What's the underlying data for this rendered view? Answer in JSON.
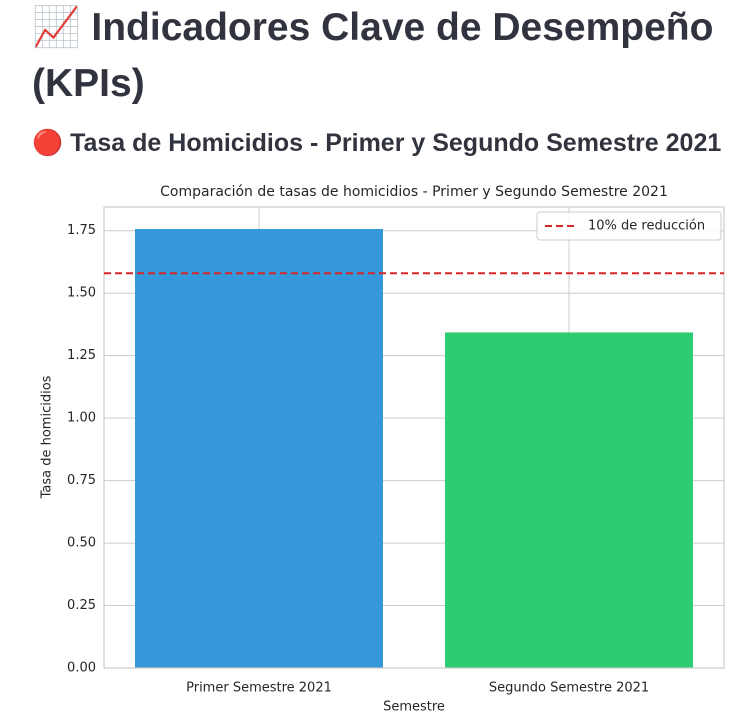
{
  "header": {
    "title": "📈 Indicadores Clave de Desempeño (KPIs)",
    "subheader": "🔴 Tasa de Homicidios - Primer y Segundo Semestre 2021"
  },
  "chart_data": {
    "type": "bar",
    "title": "Comparación de tasas de homicidios - Primer y Segundo Semestre 2021",
    "xlabel": "Semestre",
    "ylabel": "Tasa de homicidios",
    "categories": [
      "Primer Semestre 2021",
      "Segundo Semestre 2021"
    ],
    "values": [
      1.757,
      1.343
    ],
    "colors": [
      "#3498db",
      "#2ecc71"
    ],
    "ylim": [
      0,
      1.845
    ],
    "yticks": [
      {
        "value": 0,
        "label": "0.00"
      },
      {
        "value": 0.25,
        "label": "0.25"
      },
      {
        "value": 0.5,
        "label": "0.50"
      },
      {
        "value": 0.75,
        "label": "0.75"
      },
      {
        "value": 1,
        "label": "1.00"
      },
      {
        "value": 1.25,
        "label": "1.25"
      },
      {
        "value": 1.5,
        "label": "1.50"
      },
      {
        "value": 1.75,
        "label": "1.75"
      }
    ],
    "grid": true,
    "reference_line": {
      "value": 1.58,
      "label": "10% de reducción",
      "color": "#d62728"
    },
    "legend": "upper right"
  }
}
